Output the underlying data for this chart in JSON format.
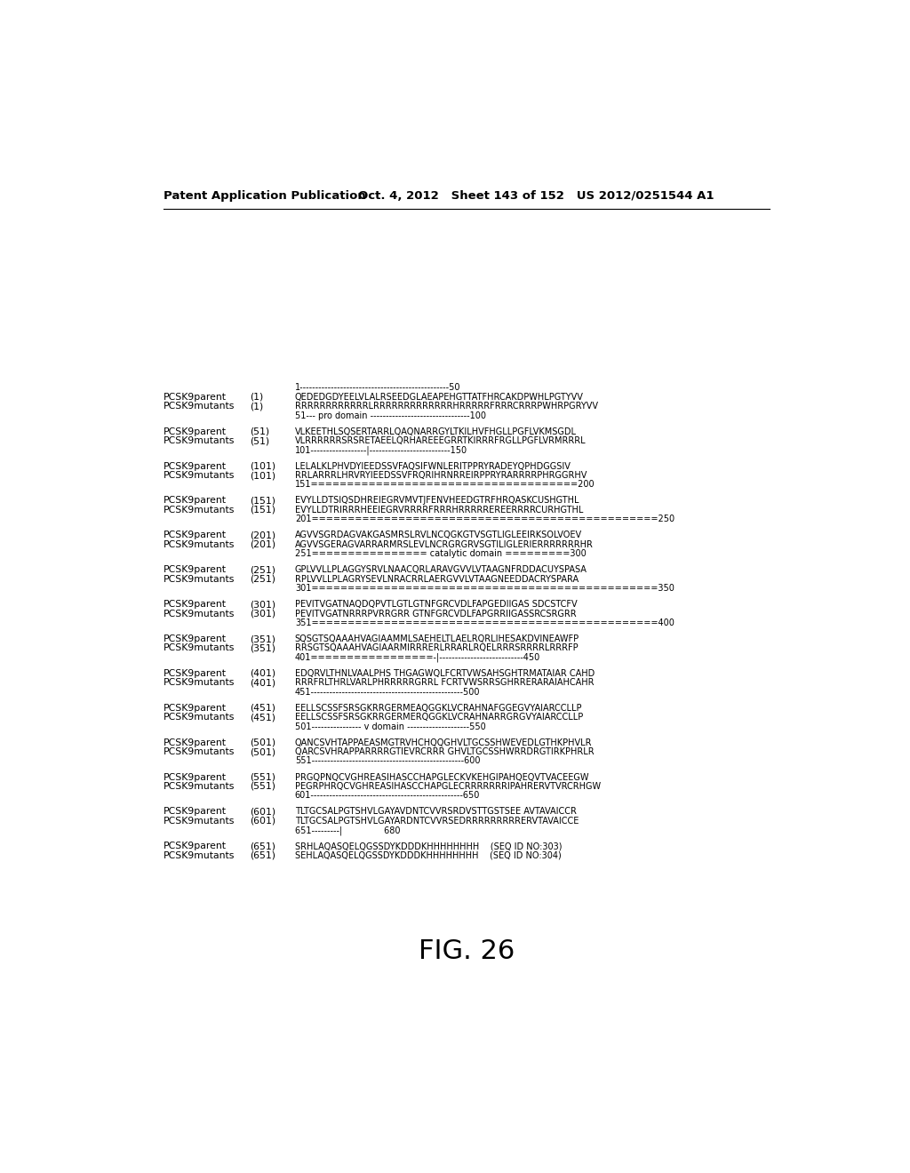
{
  "header_left": "Patent Application Publication",
  "header_right": "Oct. 4, 2012   Sheet 143 of 152   US 2012/0251544 A1",
  "figure_label": "FIG. 26",
  "background_color": "#ffffff",
  "text_color": "#000000",
  "blocks": [
    {
      "ruler_top": "1------------------------------------------------50",
      "p_num": "(1)",
      "p_seq": "QEDEDGDYEELVLALRSEEDGLAEAPEHGTTATFHRCAKDPWHLPGTYVV",
      "m_num": "(1)",
      "m_seq": "RRRRRRRRRRRRLRRRRRRRRRRRRRHRRRRRFRRRCRRRPWHRPGRYVV",
      "ruler_bot": "51--- pro domain --------------------------------100"
    },
    {
      "ruler_top": null,
      "p_num": "(51)",
      "p_seq": "VLKEETHLSQSERTARRLQAQNARRGYLTKILHVFHGLLPGFLVKMSGDL",
      "m_num": "(51)",
      "m_seq": "VLRRRRRRSRSRETAEELQRHAREEEGRRTKIRRRFRGLLPGFLVRMRRRL",
      "ruler_bot": "101------------------|--------------------------150"
    },
    {
      "ruler_top": null,
      "p_num": "(101)",
      "p_seq": "LELALKLPHVDYIEEDSSVFAQSIFWNLERITPPRYRADEYQPHDGGSIV",
      "m_num": "(101)",
      "m_seq": "RRLARRRLHRVRYIEEDSSVFRQRIHRNRREIRPPRYRARRRRPHRGGRHV",
      "ruler_bot": "151=====================================200"
    },
    {
      "ruler_top": null,
      "p_num": "(151)",
      "p_seq": "EVYLLDTSIQSDHREIEGRVMVTJFENVHEEDGTRFHRQASKCUSHGTHL",
      "m_num": "(151)",
      "m_seq": "EVYLLDTRIRRRHEEIEGRVRRRRFRRRHRRRRREREERRRRCURHGTHL",
      "ruler_bot": "201================================================250"
    },
    {
      "ruler_top": null,
      "p_num": "(201)",
      "p_seq": "AGVVSGRDAGVAKGASMRSLRVLNCQGKGTVSGTLIGLEEIRKSOLVOEV",
      "m_num": "(201)",
      "m_seq": "AGVVSGERAGVARRARMRSLEVLNCRGRGRVSGTILIGLERIERRRRRRRHR",
      "ruler_bot": "251================ catalytic domain =========300"
    },
    {
      "ruler_top": null,
      "p_num": "(251)",
      "p_seq": "GPLVVLLPLAGGYSRVLNAACQRLARAVGVVLVTAAGNFRDDACUYSPASA",
      "m_num": "(251)",
      "m_seq": "RPLVVLLPLAGRYSEVLNRACRRLAERGVVLVTAAGNEEDDACRYSPARA",
      "ruler_bot": "301================================================350"
    },
    {
      "ruler_top": null,
      "p_num": "(301)",
      "p_seq": "PEVITVGATNAQDQPVTLGTLGTNFGRCVDLFAPGEDIIGAS SDCSTCFV",
      "m_num": "(301)",
      "m_seq": "PEVITVGATNRRRPVRRGRR GTNFGRCVDLFAPGRRIIGASSRCSRGRR",
      "ruler_bot": "351================================================400"
    },
    {
      "ruler_top": null,
      "p_num": "(351)",
      "p_seq": "SQSGTSQAAAHVAGIAAMMLSAEHELTLAELRQRLIHESAKDVINEAWFP",
      "m_num": "(351)",
      "m_seq": "RRSGTSQAAAHVAGIAARMIRRRERLRRARLRQELRRRSRRRRLRRRFP",
      "ruler_bot": "401=================-|---------------------------450"
    },
    {
      "ruler_top": null,
      "p_num": "(401)",
      "p_seq": "EDQRVLTHNLVAALPHS THGAGWQLFCRTVWSAHSGHTRMATAIAR CAHD",
      "m_num": "(401)",
      "m_seq": "RRRFRLTHRLVARLPHRRRRRGRRL FCRTVWSRRSGHRRERARAIAHCAHR",
      "ruler_bot": "451-------------------------------------------------500"
    },
    {
      "ruler_top": null,
      "p_num": "(451)",
      "p_seq": "EELLSCSSFSRSGKRRGERMEAQGGKLVCRAHNAFGGEGVYAIARCCLLP",
      "m_num": "(451)",
      "m_seq": "EELLSCSSFSRSGKRRGERMERQGGKLVCRAHNARRGRGVYAIARCCLLP",
      "ruler_bot": "501---------------- v domain --------------------550"
    },
    {
      "ruler_top": null,
      "p_num": "(501)",
      "p_seq": "QANCSVHTAPPAEASMGTRVHCHQQGHVLTGCSSHWEVEDLGTHKPHVLR",
      "m_num": "(501)",
      "m_seq": "QARCSVHRAPPARRRRGTIEVRCRRR GHVLTGCSSHWRRDRGTIRKPHRLR",
      "ruler_bot": "551-------------------------------------------------600"
    },
    {
      "ruler_top": null,
      "p_num": "(551)",
      "p_seq": "PRGQPNQCVGHREASIHASCCHAPGLECKVKEHGIPAHQEQVTVACEEGW",
      "m_num": "(551)",
      "m_seq": "PEGRPHRQCVGHREASIHASCCHAPGLECRRRRRRRIPAHRERVTVRCRHGW",
      "ruler_bot": "601-------------------------------------------------650"
    },
    {
      "ruler_top": null,
      "p_num": "(601)",
      "p_seq": "TLTGCSALPGTSHVLGAYAVDNTCVVRSRDVSTTGSTSEE AVTAVAICCR",
      "m_num": "(601)",
      "m_seq": "TLTGCSALPGTSHVLGAYARDNTCVVRSEDRRRRRRRRRERVTAVAICCE",
      "ruler_bot": "651---------|               680"
    },
    {
      "ruler_top": null,
      "p_num": "(651)",
      "p_seq": "SRHLAQASQELQGSSDYKDDDKHHHHHHHH    (SEQ ID NO:303)",
      "m_num": "(651)",
      "m_seq": "SEHLAQASQELQGSSDYKDDDKHHHHHHHH    (SEQ ID NO:304)",
      "ruler_bot": null
    }
  ]
}
